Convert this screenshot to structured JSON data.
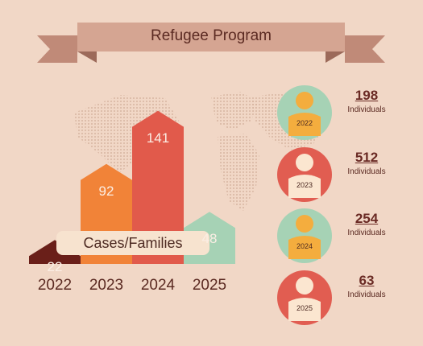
{
  "title": "Refugee Program",
  "colors": {
    "background": "#f1d7c6",
    "ribbon": "#d5a592",
    "ribbon_dark": "#c08a78",
    "map_dots": "#cfab96",
    "label_box": "#f7e3cf",
    "circle_green": "#a6d2b5",
    "circle_red": "#e15d51",
    "person_yellow": "#f4ad3e",
    "person_cream": "#fbe6d0"
  },
  "chart_data": {
    "type": "bar",
    "title": "Refugee Program",
    "categories": [
      "2022",
      "2023",
      "2024",
      "2025"
    ],
    "values": [
      22,
      92,
      141,
      48
    ],
    "series_label": "Cases/Families",
    "bar_colors": [
      "#6a1f19",
      "#f18338",
      "#e15a4b",
      "#a6d2b5"
    ]
  },
  "individuals": {
    "caption": "Individuals",
    "items": [
      {
        "year": "2022",
        "value": "198",
        "circle": "green",
        "figure": "yellow"
      },
      {
        "year": "2023",
        "value": "512",
        "circle": "red",
        "figure": "cream"
      },
      {
        "year": "2024",
        "value": "254",
        "circle": "green",
        "figure": "yellow"
      },
      {
        "year": "2025",
        "value": "63",
        "circle": "red",
        "figure": "cream"
      }
    ]
  }
}
